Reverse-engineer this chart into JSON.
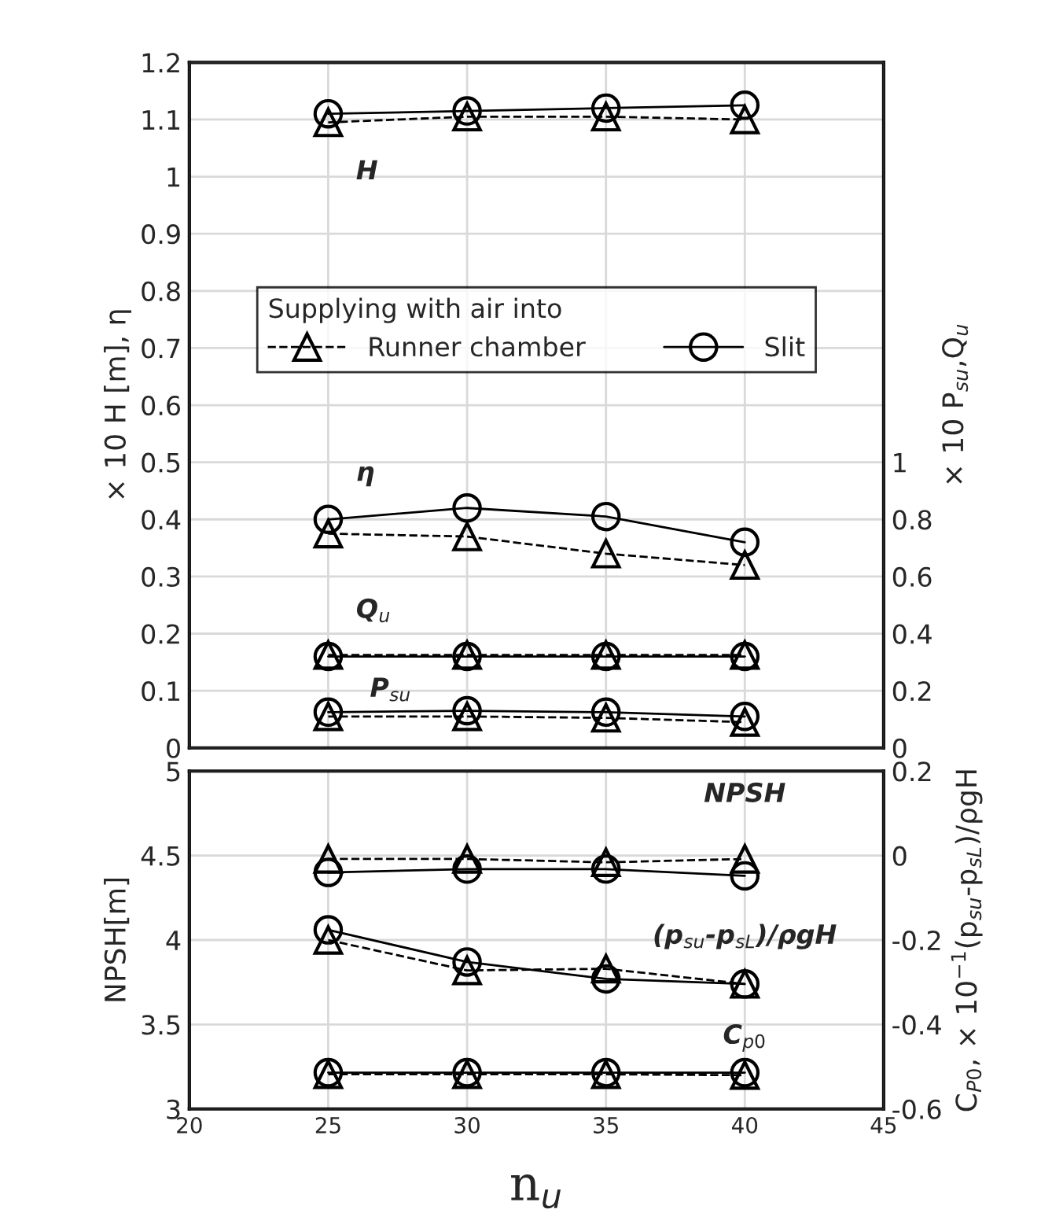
{
  "chart_data": [
    {
      "type": "line",
      "ylabel": "× 10 H [m], η",
      "y2label": "× 10 P$_{su}$,Q$_{u}$",
      "legend_title": "Supplying with air into",
      "xlim": [
        20,
        45
      ],
      "xticks": [
        20,
        25,
        30,
        35,
        40,
        45
      ],
      "ylim": [
        0,
        1.2
      ],
      "yticks": [
        0,
        0.1,
        0.2,
        0.3,
        0.4,
        0.5,
        0.6,
        0.7,
        0.8,
        0.9,
        1,
        1.1,
        1.2
      ],
      "y2lim": [
        0,
        2.4
      ],
      "y2ticks": [
        0,
        0.2,
        0.4,
        0.6,
        0.8,
        1
      ],
      "tick_labels": "y",
      "grid": true,
      "legend": "center",
      "series": [
        {
          "name": "Runner chamber",
          "color": "#000000",
          "marker": "triangle",
          "line_style": "dashed",
          "x": [
            25,
            30,
            35,
            40
          ],
          "values": [
            1.095,
            1.105,
            1.105,
            1.1
          ]
        },
        {
          "name": "Slit",
          "color": "#000000",
          "marker": "circle",
          "line_style": "solid",
          "x": [
            25,
            30,
            35,
            40
          ],
          "values": [
            1.11,
            1.115,
            1.12,
            1.125
          ]
        },
        {
          "color": "#000000",
          "marker": "triangle",
          "line_style": "dashed",
          "x": [
            25,
            30,
            35,
            40
          ],
          "values": [
            0.375,
            0.37,
            0.34,
            0.32
          ]
        },
        {
          "color": "#000000",
          "marker": "circle",
          "line_style": "solid",
          "x": [
            25,
            30,
            35,
            40
          ],
          "values": [
            0.4,
            0.42,
            0.405,
            0.36
          ]
        },
        {
          "color": "#000000",
          "marker": "triangle",
          "line_style": "dashed",
          "axis": "y2",
          "x": [
            25,
            30,
            35,
            40
          ],
          "values": [
            0.325,
            0.325,
            0.325,
            0.325
          ]
        },
        {
          "color": "#000000",
          "marker": "circle",
          "line_style": "solid",
          "axis": "y2",
          "x": [
            25,
            30,
            35,
            40
          ],
          "values": [
            0.32,
            0.32,
            0.32,
            0.32
          ]
        },
        {
          "color": "#000000",
          "marker": "triangle",
          "line_style": "dashed",
          "axis": "y2",
          "x": [
            25,
            30,
            35,
            40
          ],
          "values": [
            0.11,
            0.11,
            0.105,
            0.09
          ]
        },
        {
          "color": "#000000",
          "marker": "circle",
          "line_style": "solid",
          "axis": "y2",
          "x": [
            25,
            30,
            35,
            40
          ],
          "values": [
            0.125,
            0.13,
            0.125,
            0.11
          ]
        }
      ],
      "annotations": [
        "H",
        "η",
        "Q$_{u}$",
        "P$_{su}$"
      ]
    },
    {
      "type": "line",
      "xlabel": "n$_{u}$",
      "ylabel": "NPSH[m]",
      "y2label": "C$_{P0}$, × 10$^{−1}$(p$_{su}$-p$_{sL}$)/ρgH",
      "xlim": [
        20,
        45
      ],
      "xticks": [
        20,
        25,
        30,
        35,
        40,
        45
      ],
      "ylim": [
        3,
        5
      ],
      "yticks": [
        3,
        3.5,
        4,
        4.5,
        5
      ],
      "y2lim": [
        -0.6,
        0.2
      ],
      "y2ticks": [
        -0.6,
        -0.4,
        -0.2,
        0,
        0.2
      ],
      "grid": true,
      "series": [
        {
          "color": "#000000",
          "marker": "triangle",
          "line_style": "dashed",
          "x": [
            25,
            30,
            35,
            40
          ],
          "values": [
            4.48,
            4.48,
            4.46,
            4.48
          ]
        },
        {
          "color": "#000000",
          "marker": "circle",
          "line_style": "solid",
          "x": [
            25,
            30,
            35,
            40
          ],
          "values": [
            4.4,
            4.42,
            4.42,
            4.38
          ]
        },
        {
          "color": "#000000",
          "marker": "triangle",
          "line_style": "dashed",
          "axis": "y2",
          "x": [
            25,
            30,
            35,
            40
          ],
          "values": [
            -0.518,
            -0.518,
            -0.518,
            -0.52
          ]
        },
        {
          "color": "#000000",
          "marker": "circle",
          "line_style": "solid",
          "axis": "y2",
          "x": [
            25,
            30,
            35,
            40
          ],
          "values": [
            -0.514,
            -0.514,
            -0.514,
            -0.514
          ]
        },
        {
          "color": "#000000",
          "marker": "triangle",
          "line_style": "dashed",
          "axis": "y2",
          "x": [
            25,
            30,
            35,
            40
          ],
          "values": [
            -0.2,
            -0.272,
            -0.268,
            -0.304
          ]
        },
        {
          "color": "#000000",
          "marker": "circle",
          "line_style": "solid",
          "axis": "y2",
          "x": [
            25,
            30,
            35,
            40
          ],
          "values": [
            -0.176,
            -0.252,
            -0.292,
            -0.304
          ]
        }
      ],
      "annotations": [
        "NPSH",
        "(p$_{su}$-p$_{sL}$)/ρgH",
        "C$_{p0}$"
      ]
    }
  ]
}
